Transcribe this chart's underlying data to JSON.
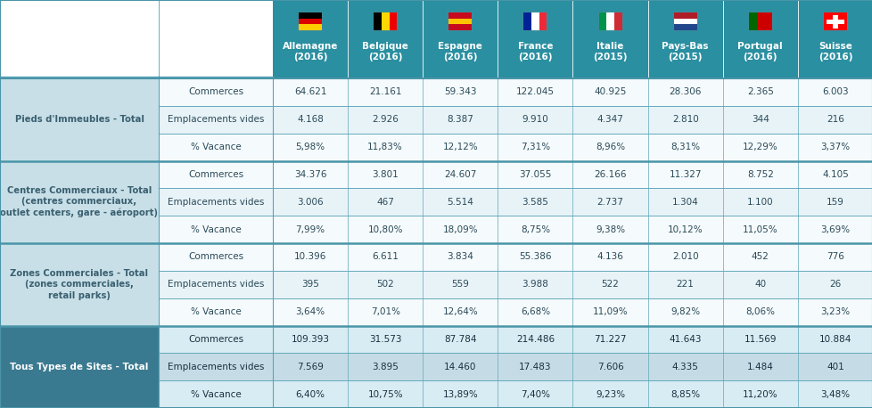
{
  "header_bg": "#2a8fa0",
  "header_text_color": "#ffffff",
  "section_label_bg": "#c8dfe8",
  "section_label_text": "#3a6070",
  "row_bg_odd": "#e8f3f8",
  "row_bg_even": "#f5fafc",
  "total_label_bg": "#3a7a90",
  "total_label_text": "#ffffff",
  "total_row_bg_odd": "#c5dce6",
  "total_row_bg_even": "#d8ecf3",
  "border_color": "#5aa5b8",
  "section_border_color": "#4a95a8",
  "data_text_color": "#2a4a58",
  "total_text_color": "#1a3040",
  "fig_bg": "#ffffff",
  "columns": [
    "Allemagne\n(2016)",
    "Belgique\n(2016)",
    "Espagne\n(2016)",
    "France\n(2016)",
    "Italie\n(2015)",
    "Pays-Bas\n(2015)",
    "Portugal\n(2016)",
    "Suisse\n(2016)"
  ],
  "row_labels": [
    "Commerces",
    "Emplacements vides",
    "% Vacance"
  ],
  "sections": [
    {
      "label": "Pieds d'Immeubles - Total",
      "rows": [
        [
          "64.621",
          "21.161",
          "59.343",
          "122.045",
          "40.925",
          "28.306",
          "2.365",
          "6.003"
        ],
        [
          "4.168",
          "2.926",
          "8.387",
          "9.910",
          "4.347",
          "2.810",
          "344",
          "216"
        ],
        [
          "5,98%",
          "11,83%",
          "12,12%",
          "7,31%",
          "8,96%",
          "8,31%",
          "12,29%",
          "3,37%"
        ]
      ]
    },
    {
      "label": "Centres Commerciaux - Total\n(centres commerciaux,\noutlet centers, gare - aéroport)",
      "rows": [
        [
          "34.376",
          "3.801",
          "24.607",
          "37.055",
          "26.166",
          "11.327",
          "8.752",
          "4.105"
        ],
        [
          "3.006",
          "467",
          "5.514",
          "3.585",
          "2.737",
          "1.304",
          "1.100",
          "159"
        ],
        [
          "7,99%",
          "10,80%",
          "18,09%",
          "8,75%",
          "9,38%",
          "10,12%",
          "11,05%",
          "3,69%"
        ]
      ]
    },
    {
      "label": "Zones Commerciales - Total\n(zones commerciales,\nretail parks)",
      "rows": [
        [
          "10.396",
          "6.611",
          "3.834",
          "55.386",
          "4.136",
          "2.010",
          "452",
          "776"
        ],
        [
          "395",
          "502",
          "559",
          "3.988",
          "522",
          "221",
          "40",
          "26"
        ],
        [
          "3,64%",
          "7,01%",
          "12,64%",
          "6,68%",
          "11,09%",
          "9,82%",
          "8,06%",
          "3,23%"
        ]
      ]
    }
  ],
  "total_section": {
    "label": "Tous Types de Sites - Total",
    "rows": [
      [
        "109.393",
        "31.573",
        "87.784",
        "214.486",
        "71.227",
        "41.643",
        "11.569",
        "10.884"
      ],
      [
        "7.569",
        "3.895",
        "14.460",
        "17.483",
        "7.606",
        "4.335",
        "1.484",
        "401"
      ],
      [
        "6,40%",
        "10,75%",
        "13,89%",
        "7,40%",
        "9,23%",
        "8,85%",
        "11,20%",
        "3,48%"
      ]
    ]
  }
}
